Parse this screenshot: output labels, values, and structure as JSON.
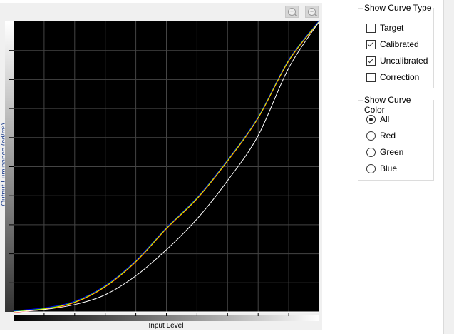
{
  "chart_data": {
    "type": "line",
    "xlabel": "Input Level",
    "ylabel": "Output Luminance (cd/m²)",
    "xlim": [
      0,
      1
    ],
    "ylim": [
      0,
      1
    ],
    "grid": true,
    "x_divisions": 10,
    "y_divisions": 10,
    "series": [
      {
        "name": "Calibrated",
        "color": "#e8e800",
        "channel_colors": [
          "#0000ff",
          "#00c000",
          "#ff0000"
        ],
        "x": [
          0,
          0.1,
          0.2,
          0.3,
          0.4,
          0.5,
          0.6,
          0.7,
          0.8,
          0.9,
          1.0
        ],
        "y": [
          0,
          0.01,
          0.033,
          0.087,
          0.173,
          0.287,
          0.39,
          0.52,
          0.668,
          0.865,
          1.0
        ]
      },
      {
        "name": "Uncalibrated",
        "color": "#ffffff",
        "x": [
          0,
          0.1,
          0.2,
          0.3,
          0.4,
          0.5,
          0.6,
          0.7,
          0.8,
          0.9,
          1.0
        ],
        "y": [
          0,
          0.008,
          0.025,
          0.059,
          0.124,
          0.214,
          0.32,
          0.452,
          0.607,
          0.84,
          1.0
        ]
      }
    ]
  },
  "toolbar": {
    "zoom_in_icon": "zoom-in-icon",
    "zoom_out_icon": "zoom-out-icon"
  },
  "curve_type": {
    "title": "Show Curve Type",
    "options": [
      {
        "label": "Target",
        "checked": false
      },
      {
        "label": "Calibrated",
        "checked": true
      },
      {
        "label": "Uncalibrated",
        "checked": true
      },
      {
        "label": "Correction",
        "checked": false
      }
    ]
  },
  "curve_color": {
    "title": "Show Curve Color",
    "options": [
      {
        "label": "All",
        "selected": true
      },
      {
        "label": "Red",
        "selected": false
      },
      {
        "label": "Green",
        "selected": false
      },
      {
        "label": "Blue",
        "selected": false
      }
    ]
  }
}
